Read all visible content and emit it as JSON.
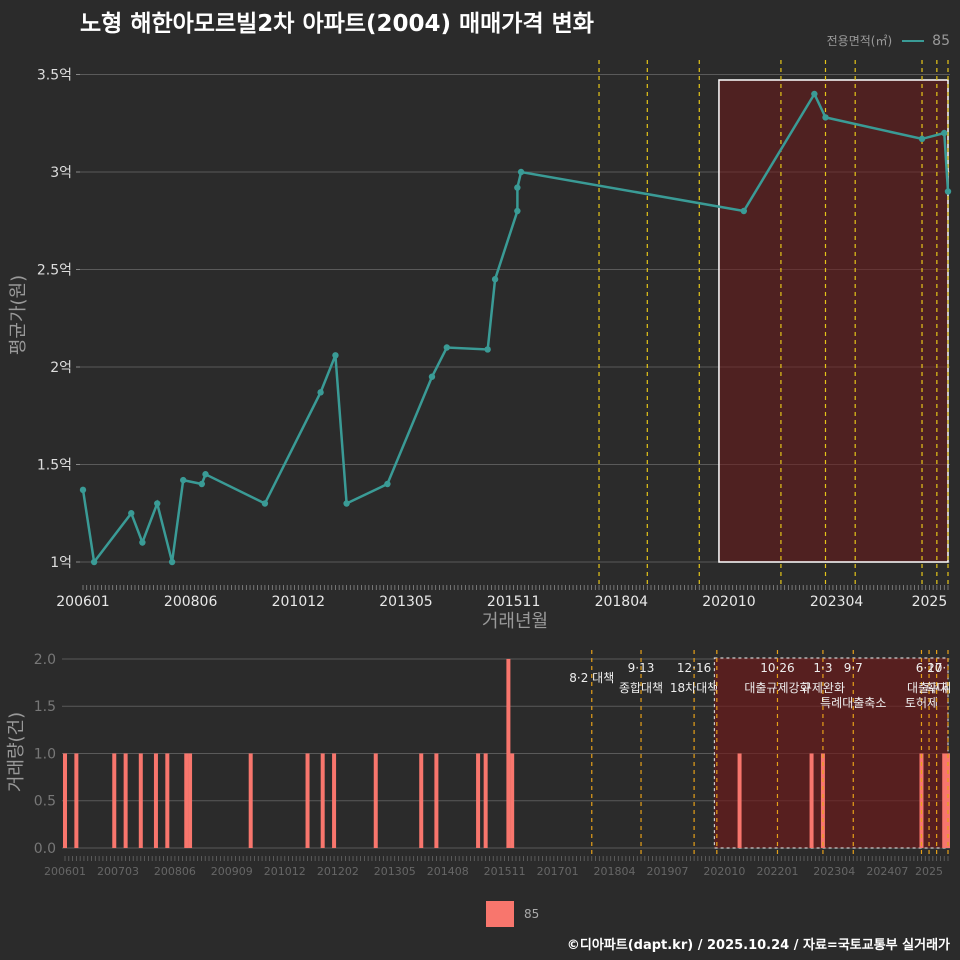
{
  "title": "노형 해한아모르빌2차 아파트(2004) 매매가격 변화",
  "legend": {
    "title": "전용면적(㎡)",
    "label": "85",
    "line_color": "#3a9b96",
    "bar_color": "#f8766d"
  },
  "footer": "©디아파트(dapt.kr) / 2025.10.24 / 자료=국토교통부 실거래가",
  "chart_data": [
    {
      "type": "line",
      "title": "노형 해한아모르빌2차 아파트(2004) 매매가격 변화",
      "xlabel": "거래년월",
      "ylabel": "평균가(원)",
      "ylim": [
        0.87,
        3.6
      ],
      "y_ticks": [
        1,
        1.5,
        2,
        2.5,
        3,
        3.5
      ],
      "y_tick_labels": [
        "1억",
        "1.5억",
        "2억",
        "2.5억",
        "3억",
        "3.5억"
      ],
      "x_ticks": [
        0,
        29,
        58,
        87,
        116,
        145,
        174,
        203,
        228
      ],
      "x_tick_labels": [
        "200601",
        "200806",
        "201012",
        "201305",
        "201511",
        "201804",
        "202010",
        "202304",
        "2025"
      ],
      "series": [
        {
          "name": "85",
          "points": [
            {
              "x": 0,
              "y": 1.37
            },
            {
              "x": 3,
              "y": 1.0
            },
            {
              "x": 13,
              "y": 1.25
            },
            {
              "x": 16,
              "y": 1.1
            },
            {
              "x": 20,
              "y": 1.3
            },
            {
              "x": 24,
              "y": 1.0
            },
            {
              "x": 27,
              "y": 1.42
            },
            {
              "x": 32,
              "y": 1.4
            },
            {
              "x": 33,
              "y": 1.45
            },
            {
              "x": 49,
              "y": 1.3
            },
            {
              "x": 64,
              "y": 1.87
            },
            {
              "x": 68,
              "y": 2.06
            },
            {
              "x": 71,
              "y": 1.3
            },
            {
              "x": 82,
              "y": 1.4
            },
            {
              "x": 94,
              "y": 1.95
            },
            {
              "x": 98,
              "y": 2.1
            },
            {
              "x": 109,
              "y": 2.09
            },
            {
              "x": 111,
              "y": 2.45
            },
            {
              "x": 117,
              "y": 2.8
            },
            {
              "x": 117,
              "y": 2.92
            },
            {
              "x": 118,
              "y": 3.0
            },
            {
              "x": 178,
              "y": 2.8
            },
            {
              "x": 197,
              "y": 3.4
            },
            {
              "x": 200,
              "y": 3.28
            },
            {
              "x": 226,
              "y": 3.17
            },
            {
              "x": 232,
              "y": 3.2
            },
            {
              "x": 233,
              "y": 2.9
            }
          ]
        }
      ],
      "event_lines_x": [
        139,
        152,
        166,
        188,
        200,
        208,
        226,
        230,
        233
      ],
      "highlight_range_x": [
        174,
        233
      ]
    },
    {
      "type": "bar",
      "ylabel": "거래량(건)",
      "ylim": [
        0,
        2.1
      ],
      "y_ticks": [
        0,
        0.5,
        1,
        1.5,
        2
      ],
      "y_tick_labels": [
        "0.0",
        "0.5",
        "1.0",
        "1.5",
        "2.0"
      ],
      "x_ticks": [
        0,
        14,
        29,
        44,
        58,
        72,
        87,
        101,
        116,
        130,
        145,
        159,
        174,
        188,
        203,
        217,
        228
      ],
      "x_tick_labels": [
        "200601",
        "200703",
        "200806",
        "200909",
        "201012",
        "201202",
        "201305",
        "201408",
        "201511",
        "201701",
        "201804",
        "201907",
        "202010",
        "202201",
        "202304",
        "202407",
        "2025"
      ],
      "series": [
        {
          "name": "85",
          "bars": [
            {
              "x": 0,
              "v": 1
            },
            {
              "x": 3,
              "v": 1
            },
            {
              "x": 13,
              "v": 1
            },
            {
              "x": 16,
              "v": 1
            },
            {
              "x": 20,
              "v": 1
            },
            {
              "x": 24,
              "v": 1
            },
            {
              "x": 27,
              "v": 1
            },
            {
              "x": 32,
              "v": 1
            },
            {
              "x": 33,
              "v": 1
            },
            {
              "x": 49,
              "v": 1
            },
            {
              "x": 64,
              "v": 1
            },
            {
              "x": 68,
              "v": 1
            },
            {
              "x": 71,
              "v": 1
            },
            {
              "x": 82,
              "v": 1
            },
            {
              "x": 94,
              "v": 1
            },
            {
              "x": 98,
              "v": 1
            },
            {
              "x": 109,
              "v": 1
            },
            {
              "x": 111,
              "v": 1
            },
            {
              "x": 117,
              "v": 2
            },
            {
              "x": 118,
              "v": 1
            },
            {
              "x": 178,
              "v": 1
            },
            {
              "x": 197,
              "v": 1
            },
            {
              "x": 200,
              "v": 1
            },
            {
              "x": 226,
              "v": 1
            },
            {
              "x": 232,
              "v": 1
            },
            {
              "x": 233,
              "v": 1
            }
          ]
        }
      ],
      "events": [
        {
          "x": 139,
          "date": "",
          "label": "8·2 대책"
        },
        {
          "x": 152,
          "date": "9·13",
          "label": "종합대책"
        },
        {
          "x": 166,
          "date": "12·16",
          "label": "18차대책"
        },
        {
          "x": 172,
          "date": "",
          "label": ""
        },
        {
          "x": 188,
          "date": "10·26",
          "label": "대출규제강화"
        },
        {
          "x": 200,
          "date": "1·3",
          "label": "규제완화"
        },
        {
          "x": 208,
          "date": "9·7",
          "label": "특례대출축소"
        },
        {
          "x": 226,
          "date": "",
          "label": "토허제"
        },
        {
          "x": 228,
          "date": "6·27",
          "label": "대출규제"
        },
        {
          "x": 230,
          "date": "10·",
          "label": "확대"
        },
        {
          "x": 233,
          "date": "",
          "label": ""
        }
      ],
      "highlight_range_x": [
        174,
        233
      ]
    }
  ]
}
